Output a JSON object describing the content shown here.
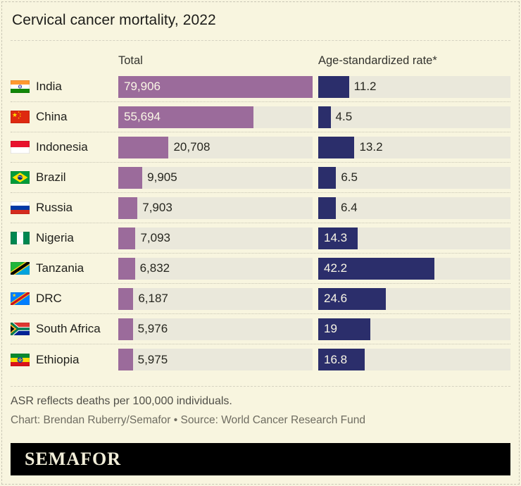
{
  "title": "Cervical cancer mortality, 2022",
  "header": {
    "total": "Total",
    "asr": "Age-standardized rate*"
  },
  "chart_data": {
    "type": "bar",
    "title": "Cervical cancer mortality, 2022",
    "orientation": "horizontal",
    "grid": false,
    "legend_position": "column-headers",
    "categories": [
      "India",
      "China",
      "Indonesia",
      "Brazil",
      "Russia",
      "Nigeria",
      "Tanzania",
      "DRC",
      "South Africa",
      "Ethiopia"
    ],
    "flags": [
      "india",
      "china",
      "indonesia",
      "brazil",
      "russia",
      "nigeria",
      "tanzania",
      "drc",
      "south-africa",
      "ethiopia"
    ],
    "series": [
      {
        "name": "Total",
        "values": [
          79906,
          55694,
          20708,
          9905,
          7903,
          7093,
          6832,
          6187,
          5976,
          5975
        ],
        "labels": [
          "79,906",
          "55,694",
          "20,708",
          "9,905",
          "7,903",
          "7,093",
          "6,832",
          "6,187",
          "5,976",
          "5,975"
        ],
        "axis_max": 80000,
        "color": "#9b6b9b"
      },
      {
        "name": "Age-standardized rate*",
        "values": [
          11.2,
          4.5,
          13.2,
          6.5,
          6.4,
          14.3,
          42.2,
          24.6,
          19,
          16.8
        ],
        "labels": [
          "11.2",
          "4.5",
          "13.2",
          "6.5",
          "6.4",
          "14.3",
          "42.2",
          "24.6",
          "19",
          "16.8"
        ],
        "axis_max": 70,
        "color": "#2b2e6b"
      }
    ]
  },
  "footnote": "ASR reflects deaths per 100,000 individuals.",
  "credit": "Chart: Brendan Ruberry/Semafor • Source: World Cancer Research Fund",
  "brand": "SEMAFOR",
  "colors": {
    "background": "#f8f5df",
    "bar_track": "#eae8db",
    "total_bar": "#9b6b9b",
    "asr_bar": "#2b2e6b",
    "divider": "#d5d2c1",
    "row_divider": "#c8c5b4",
    "bar_label_light": "#faf7e6",
    "brand_bg": "#000000",
    "brand_text": "#f2eed9"
  }
}
